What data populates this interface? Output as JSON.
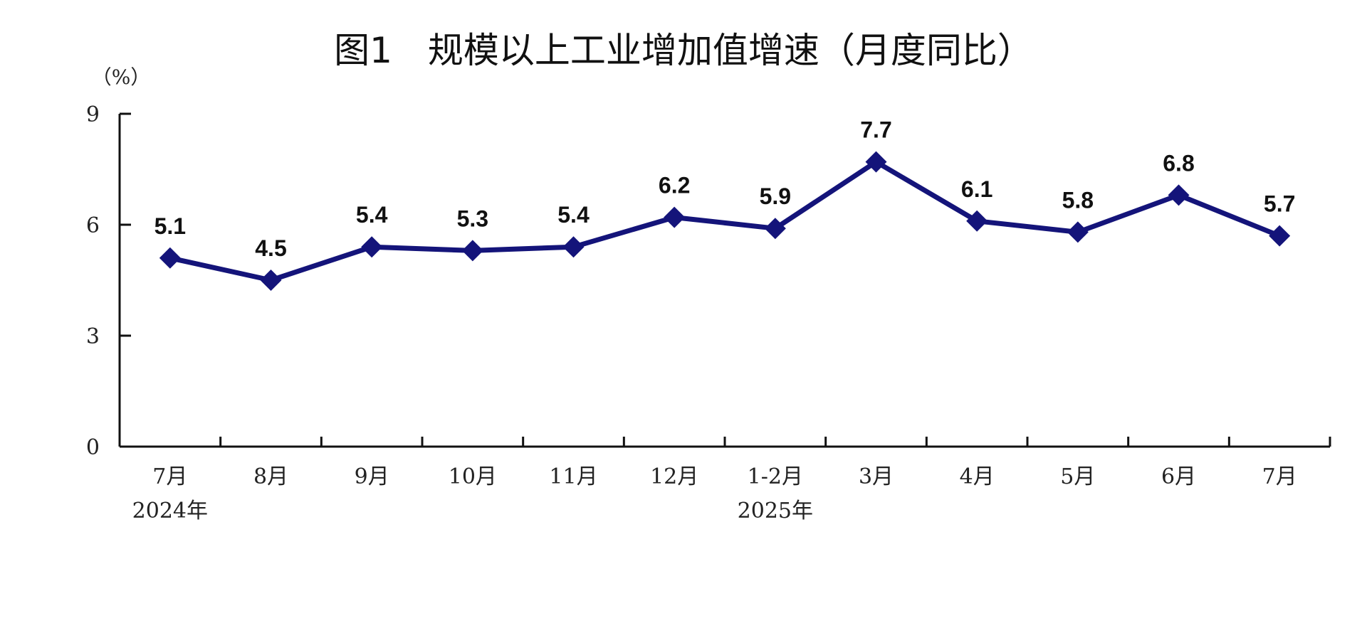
{
  "chart_data": {
    "type": "line",
    "title": "图1　规模以上工业增加值增速（月度同比）",
    "ylabel": "（%）",
    "xlabel": "",
    "ylim": [
      0,
      9
    ],
    "yticks": [
      "0",
      "3",
      "6",
      "9"
    ],
    "grid": false,
    "legend": "none",
    "categories": [
      "7月",
      "8月",
      "9月",
      "10月",
      "11月",
      "12月",
      "1-2月",
      "3月",
      "4月",
      "5月",
      "6月",
      "7月"
    ],
    "year_labels": [
      {
        "text": "2024年",
        "category_index": 0
      },
      {
        "text": "2025年",
        "category_index": 6
      }
    ],
    "series": [
      {
        "values": [
          5.1,
          4.5,
          5.4,
          5.3,
          5.4,
          6.2,
          5.9,
          7.7,
          6.1,
          5.8,
          6.8,
          5.7
        ],
        "labels": [
          "5.1",
          "4.5",
          "5.4",
          "5.3",
          "5.4",
          "6.2",
          "5.9",
          "7.7",
          "6.1",
          "5.8",
          "6.8",
          "5.7"
        ],
        "color": "#14147a",
        "marker": "diamond"
      }
    ]
  }
}
